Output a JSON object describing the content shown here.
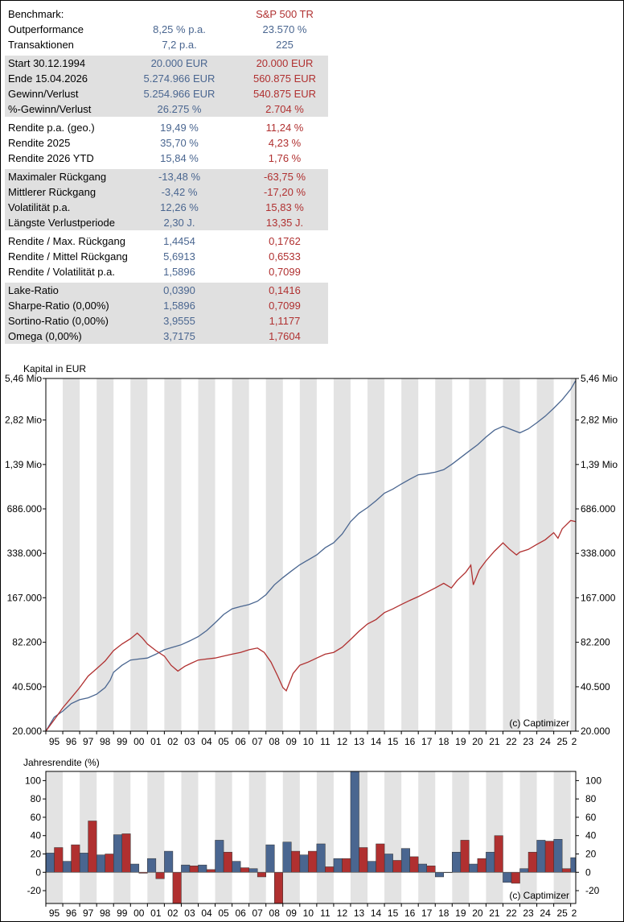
{
  "stats": {
    "groups": [
      {
        "shaded": false,
        "rows": [
          {
            "label": "Benchmark:",
            "v1": "",
            "v2": "S&P 500 TR",
            "v2_color": "red"
          },
          {
            "label": "Outperformance",
            "v1": "8,25 % p.a.",
            "v2": "23.570 %",
            "v2_color": "blue"
          },
          {
            "label": "Transaktionen",
            "v1": "7,2 p.a.",
            "v2": "225",
            "v2_color": "blue"
          }
        ]
      },
      {
        "shaded": true,
        "rows": [
          {
            "label": "Start  30.12.1994",
            "v1": "20.000 EUR",
            "v2": "20.000 EUR"
          },
          {
            "label": "Ende  15.04.2026",
            "v1": "5.274.966 EUR",
            "v2": "560.875 EUR"
          },
          {
            "label": "Gewinn/Verlust",
            "v1": "5.254.966 EUR",
            "v2": "540.875 EUR"
          },
          {
            "label": "%-Gewinn/Verlust",
            "v1": "26.275 %",
            "v2": "2.704 %"
          }
        ]
      },
      {
        "shaded": false,
        "rows": [
          {
            "label": "Rendite p.a. (geo.)",
            "v1": "19,49 %",
            "v2": "11,24 %"
          },
          {
            "label": "Rendite 2025",
            "v1": "35,70 %",
            "v2": "4,23 %"
          },
          {
            "label": "Rendite 2026 YTD",
            "v1": "15,84 %",
            "v2": "1,76 %"
          }
        ]
      },
      {
        "shaded": true,
        "rows": [
          {
            "label": "Maximaler Rückgang",
            "v1": "-13,48 %",
            "v2": "-63,75 %"
          },
          {
            "label": "Mittlerer Rückgang",
            "v1": "-3,42 %",
            "v2": "-17,20 %"
          },
          {
            "label": "Volatilität p.a.",
            "v1": "12,26 %",
            "v2": "15,83 %"
          },
          {
            "label": "Längste Verlustperiode",
            "v1": "2,30 J.",
            "v2": "13,35 J."
          }
        ]
      },
      {
        "shaded": false,
        "rows": [
          {
            "label": "Rendite / Max. Rückgang",
            "v1": "1,4454",
            "v2": "0,1762"
          },
          {
            "label": "Rendite / Mittel Rückgang",
            "v1": "5,6913",
            "v2": "0,6533"
          },
          {
            "label": "Rendite / Volatilität p.a.",
            "v1": "1,5896",
            "v2": "0,7099"
          }
        ]
      },
      {
        "shaded": true,
        "rows": [
          {
            "label": "Lake-Ratio",
            "v1": "0,0390",
            "v2": "0,1416"
          },
          {
            "label": "Sharpe-Ratio (0,00%)",
            "v1": "1,5896",
            "v2": "0,7099"
          },
          {
            "label": "Sortino-Ratio (0,00%)",
            "v1": "3,9555",
            "v2": "1,1177"
          },
          {
            "label": "Omega (0,00%)",
            "v1": "3,7175",
            "v2": "1,7604"
          }
        ]
      }
    ]
  },
  "colors": {
    "strategy": "#4a6690",
    "benchmark": "#b03030",
    "band": "#e3e3e3"
  },
  "chart_data": [
    {
      "type": "line",
      "title": "Kapital in EUR",
      "yscale": "log",
      "ylim": [
        20000,
        5460000
      ],
      "yticks": [
        {
          "value": 20000,
          "label": "20.000"
        },
        {
          "value": 40500,
          "label": "40.500"
        },
        {
          "value": 82200,
          "label": "82.200"
        },
        {
          "value": 167000,
          "label": "167.000"
        },
        {
          "value": 338000,
          "label": "338.000"
        },
        {
          "value": 686000,
          "label": "686.000"
        },
        {
          "value": 1390000,
          "label": "1,39 Mio"
        },
        {
          "value": 2820000,
          "label": "2,82 Mio"
        },
        {
          "value": 5460000,
          "label": "5,46 Mio"
        }
      ],
      "xticks": [
        "95",
        "96",
        "97",
        "98",
        "99",
        "00",
        "01",
        "02",
        "03",
        "04",
        "05",
        "06",
        "07",
        "08",
        "09",
        "10",
        "11",
        "12",
        "13",
        "14",
        "15",
        "16",
        "17",
        "18",
        "19",
        "20",
        "21",
        "22",
        "23",
        "24",
        "25",
        "2"
      ],
      "x_range": [
        1995.0,
        2026.3
      ],
      "annotation": "(c) Captimizer",
      "series": [
        {
          "color": "strategy",
          "x": [
            1995.0,
            1995.5,
            1996.0,
            1996.5,
            1997.0,
            1997.5,
            1998.0,
            1998.5,
            1998.8,
            1999.0,
            1999.5,
            2000.0,
            2000.5,
            2001.0,
            2001.5,
            2002.0,
            2002.5,
            2003.0,
            2003.5,
            2004.0,
            2004.5,
            2005.0,
            2005.5,
            2006.0,
            2006.5,
            2007.0,
            2007.5,
            2008.0,
            2008.5,
            2009.0,
            2009.5,
            2010.0,
            2010.5,
            2011.0,
            2011.5,
            2012.0,
            2012.5,
            2013.0,
            2013.5,
            2014.0,
            2014.5,
            2015.0,
            2015.5,
            2016.0,
            2016.5,
            2017.0,
            2017.5,
            2018.0,
            2018.5,
            2019.0,
            2019.5,
            2020.0,
            2020.5,
            2021.0,
            2021.5,
            2022.0,
            2022.5,
            2023.0,
            2023.5,
            2024.0,
            2024.5,
            2025.0,
            2025.5,
            2026.0,
            2026.29
          ],
          "y": [
            20000,
            25000,
            27500,
            31000,
            33000,
            34000,
            36000,
            40000,
            45000,
            51000,
            57000,
            62000,
            63000,
            64000,
            68000,
            73000,
            76000,
            79000,
            84000,
            90000,
            99000,
            112000,
            128000,
            140000,
            145000,
            150000,
            158000,
            175000,
            205000,
            230000,
            255000,
            282000,
            305000,
            330000,
            370000,
            400000,
            460000,
            560000,
            640000,
            700000,
            780000,
            880000,
            940000,
            1020000,
            1100000,
            1180000,
            1200000,
            1230000,
            1280000,
            1400000,
            1550000,
            1720000,
            1900000,
            2150000,
            2400000,
            2550000,
            2420000,
            2300000,
            2450000,
            2700000,
            3000000,
            3400000,
            3900000,
            4600000,
            5270000
          ]
        },
        {
          "color": "benchmark",
          "x": [
            1995.0,
            1995.5,
            1996.0,
            1996.5,
            1997.0,
            1997.5,
            1998.0,
            1998.5,
            1999.0,
            1999.5,
            2000.0,
            2000.4,
            2000.7,
            2001.0,
            2001.5,
            2002.0,
            2002.4,
            2002.8,
            2003.2,
            2003.6,
            2004.0,
            2004.5,
            2005.0,
            2005.5,
            2006.0,
            2006.5,
            2007.0,
            2007.5,
            2007.9,
            2008.3,
            2008.7,
            2009.0,
            2009.2,
            2009.6,
            2010.0,
            2010.5,
            2011.0,
            2011.5,
            2012.0,
            2012.5,
            2013.0,
            2013.5,
            2014.0,
            2014.5,
            2015.0,
            2015.5,
            2016.0,
            2016.5,
            2017.0,
            2017.5,
            2018.0,
            2018.5,
            2018.95,
            2019.3,
            2019.8,
            2020.1,
            2020.25,
            2020.6,
            2021.0,
            2021.5,
            2022.0,
            2022.4,
            2022.8,
            2023.0,
            2023.5,
            2024.0,
            2024.5,
            2025.0,
            2025.25,
            2025.5,
            2026.0,
            2026.29
          ],
          "y": [
            20000,
            24000,
            29000,
            34000,
            40000,
            48000,
            54000,
            61000,
            72000,
            80000,
            87000,
            95000,
            88000,
            80000,
            72000,
            66000,
            57000,
            52000,
            56000,
            59000,
            62000,
            63000,
            64000,
            66000,
            68000,
            70000,
            73000,
            75000,
            70000,
            60000,
            48000,
            40000,
            38000,
            50000,
            57000,
            60000,
            64000,
            68000,
            70000,
            76000,
            86000,
            98000,
            110000,
            118000,
            132000,
            140000,
            150000,
            160000,
            170000,
            182000,
            195000,
            210000,
            195000,
            220000,
            250000,
            280000,
            205000,
            260000,
            300000,
            350000,
            400000,
            360000,
            330000,
            345000,
            360000,
            390000,
            420000,
            470000,
            430000,
            500000,
            570000,
            560000
          ]
        }
      ]
    },
    {
      "type": "bar",
      "title": "Jahresrendite (%)",
      "ylim": [
        -34,
        110
      ],
      "yticks": [
        -20,
        0,
        20,
        40,
        60,
        80,
        100
      ],
      "categories": [
        "95",
        "96",
        "97",
        "98",
        "99",
        "00",
        "01",
        "02",
        "03",
        "04",
        "05",
        "06",
        "07",
        "08",
        "09",
        "10",
        "11",
        "12",
        "13",
        "14",
        "15",
        "16",
        "17",
        "18",
        "19",
        "20",
        "21",
        "22",
        "23",
        "24",
        "25",
        "2"
      ],
      "annotation": "(c) Captimizer",
      "series": [
        {
          "color": "strategy",
          "values": [
            21,
            12,
            21,
            19,
            41,
            9,
            15,
            23,
            8,
            8,
            35,
            12,
            4,
            30,
            33,
            19,
            31,
            15,
            110,
            12,
            20,
            26,
            9,
            -5,
            22,
            9,
            22,
            -11,
            4,
            35,
            36,
            16
          ]
        },
        {
          "color": "benchmark",
          "values": [
            27,
            30,
            56,
            20,
            42,
            -1,
            -7,
            -34,
            7,
            3,
            22,
            5,
            -5,
            -34,
            23,
            23,
            6,
            15,
            27,
            31,
            13,
            17,
            7,
            0,
            35,
            15,
            40,
            -12,
            22,
            34,
            4,
            2
          ]
        }
      ]
    }
  ]
}
